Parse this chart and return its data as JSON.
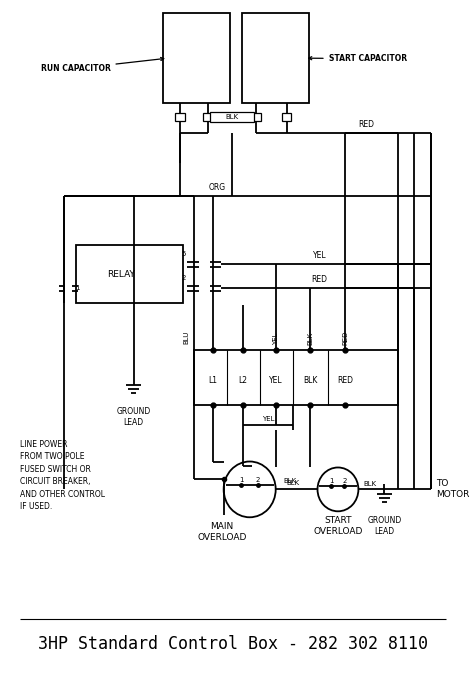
{
  "title": "3HP Standard Control Box - 282 302 8110",
  "bg_color": "#ffffff",
  "line_color": "#000000",
  "title_fontsize": 12,
  "label_fontsize": 6.5,
  "small_fontsize": 5.5,
  "tiny_fontsize": 5.0,
  "fig_width": 4.74,
  "fig_height": 6.81,
  "run_cap_label": "RUN CAPACITOR",
  "start_cap_label": "START CAPACITOR",
  "relay_label": "RELAY",
  "line_power_text": "LINE POWER\nFROM TWO POLE\nFUSED SWITCH OR\nCIRCUIT BREAKER,\nAND OTHER CONTROL\nIF USED.",
  "main_overload_label": "MAIN\nOVERLOAD",
  "start_overload_label": "START\nOVERLOAD",
  "ground_lead_label": "GROUND\nLEAD",
  "to_motor_label": "TO\nMOTOR"
}
